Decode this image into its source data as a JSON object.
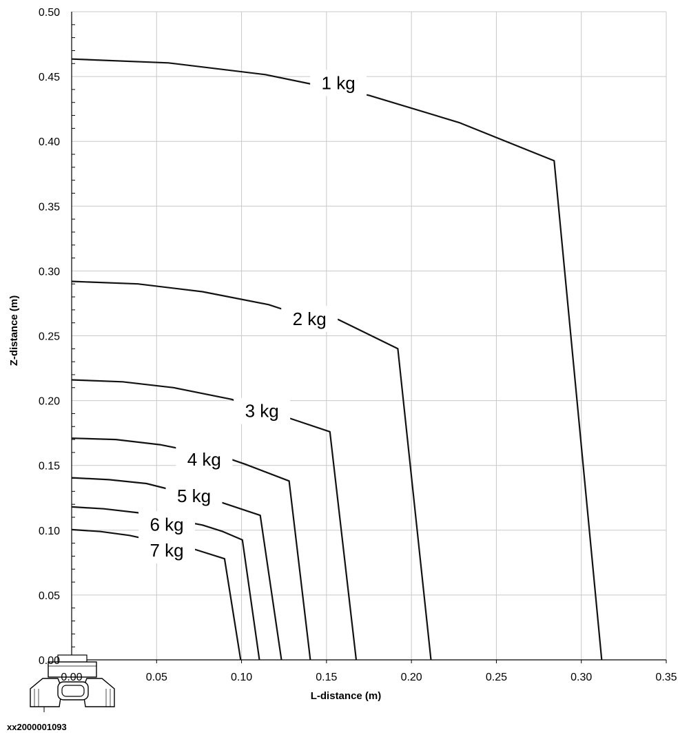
{
  "chart_data": {
    "type": "line",
    "title": "",
    "xlabel": "L-distance (m)",
    "ylabel": "Z-distance (m)",
    "xlim": [
      0,
      0.35
    ],
    "ylim": [
      0,
      0.5
    ],
    "x_ticks": [
      "0.00",
      "0.05",
      "0.10",
      "0.15",
      "0.20",
      "0.25",
      "0.30",
      "0.35"
    ],
    "y_ticks": [
      "0.00",
      "0.05",
      "0.10",
      "0.15",
      "0.20",
      "0.25",
      "0.30",
      "0.35",
      "0.40",
      "0.45",
      "0.50"
    ],
    "grid": true,
    "series": [
      {
        "name": "1 kg",
        "label_at": [
          0.157,
          0.445
        ],
        "points": [
          [
            0,
            0.4635
          ],
          [
            0.057,
            0.4605
          ],
          [
            0.114,
            0.4515
          ],
          [
            0.14,
            0.4445
          ],
          [
            0.175,
            0.4355
          ],
          [
            0.228,
            0.4145
          ],
          [
            0.284,
            0.385
          ],
          [
            0.312,
            0
          ]
        ]
      },
      {
        "name": "2 kg",
        "label_at": [
          0.14,
          0.263
        ],
        "points": [
          [
            0,
            0.292
          ],
          [
            0.039,
            0.29
          ],
          [
            0.077,
            0.284
          ],
          [
            0.116,
            0.274
          ],
          [
            0.123,
            0.271
          ],
          [
            0.157,
            0.2625
          ],
          [
            0.192,
            0.24
          ],
          [
            0.2115,
            0
          ]
        ]
      },
      {
        "name": "3 kg",
        "label_at": [
          0.112,
          0.192
        ],
        "points": [
          [
            0,
            0.216
          ],
          [
            0.03,
            0.2145
          ],
          [
            0.06,
            0.21
          ],
          [
            0.094,
            0.201
          ],
          [
            0.128,
            0.1865
          ],
          [
            0.152,
            0.176
          ],
          [
            0.1675,
            0
          ]
        ]
      },
      {
        "name": "4 kg",
        "label_at": [
          0.078,
          0.1545
        ],
        "points": [
          [
            0,
            0.171
          ],
          [
            0.026,
            0.17
          ],
          [
            0.052,
            0.166
          ],
          [
            0.092,
            0.1555
          ],
          [
            0.102,
            0.151
          ],
          [
            0.128,
            0.138
          ],
          [
            0.1405,
            0
          ]
        ]
      },
      {
        "name": "5 kg",
        "label_at": [
          0.072,
          0.1265
        ],
        "points": [
          [
            0,
            0.1405
          ],
          [
            0.022,
            0.139
          ],
          [
            0.044,
            0.136
          ],
          [
            0.088,
            0.1215
          ],
          [
            0.111,
            0.1115
          ],
          [
            0.1235,
            0
          ]
        ]
      },
      {
        "name": "6 kg",
        "label_at": [
          0.056,
          0.1045
        ],
        "points": [
          [
            0,
            0.118
          ],
          [
            0.019,
            0.1165
          ],
          [
            0.039,
            0.1135
          ],
          [
            0.077,
            0.104
          ],
          [
            0.089,
            0.099
          ],
          [
            0.1005,
            0.0925
          ],
          [
            0.1105,
            0
          ]
        ]
      },
      {
        "name": "7 kg",
        "label_at": [
          0.056,
          0.0845
        ],
        "points": [
          [
            0,
            0.1005
          ],
          [
            0.017,
            0.099
          ],
          [
            0.034,
            0.096
          ],
          [
            0.073,
            0.085
          ],
          [
            0.09,
            0.078
          ],
          [
            0.0995,
            0
          ]
        ]
      }
    ]
  },
  "footer": {
    "id": "xx2000001093"
  }
}
